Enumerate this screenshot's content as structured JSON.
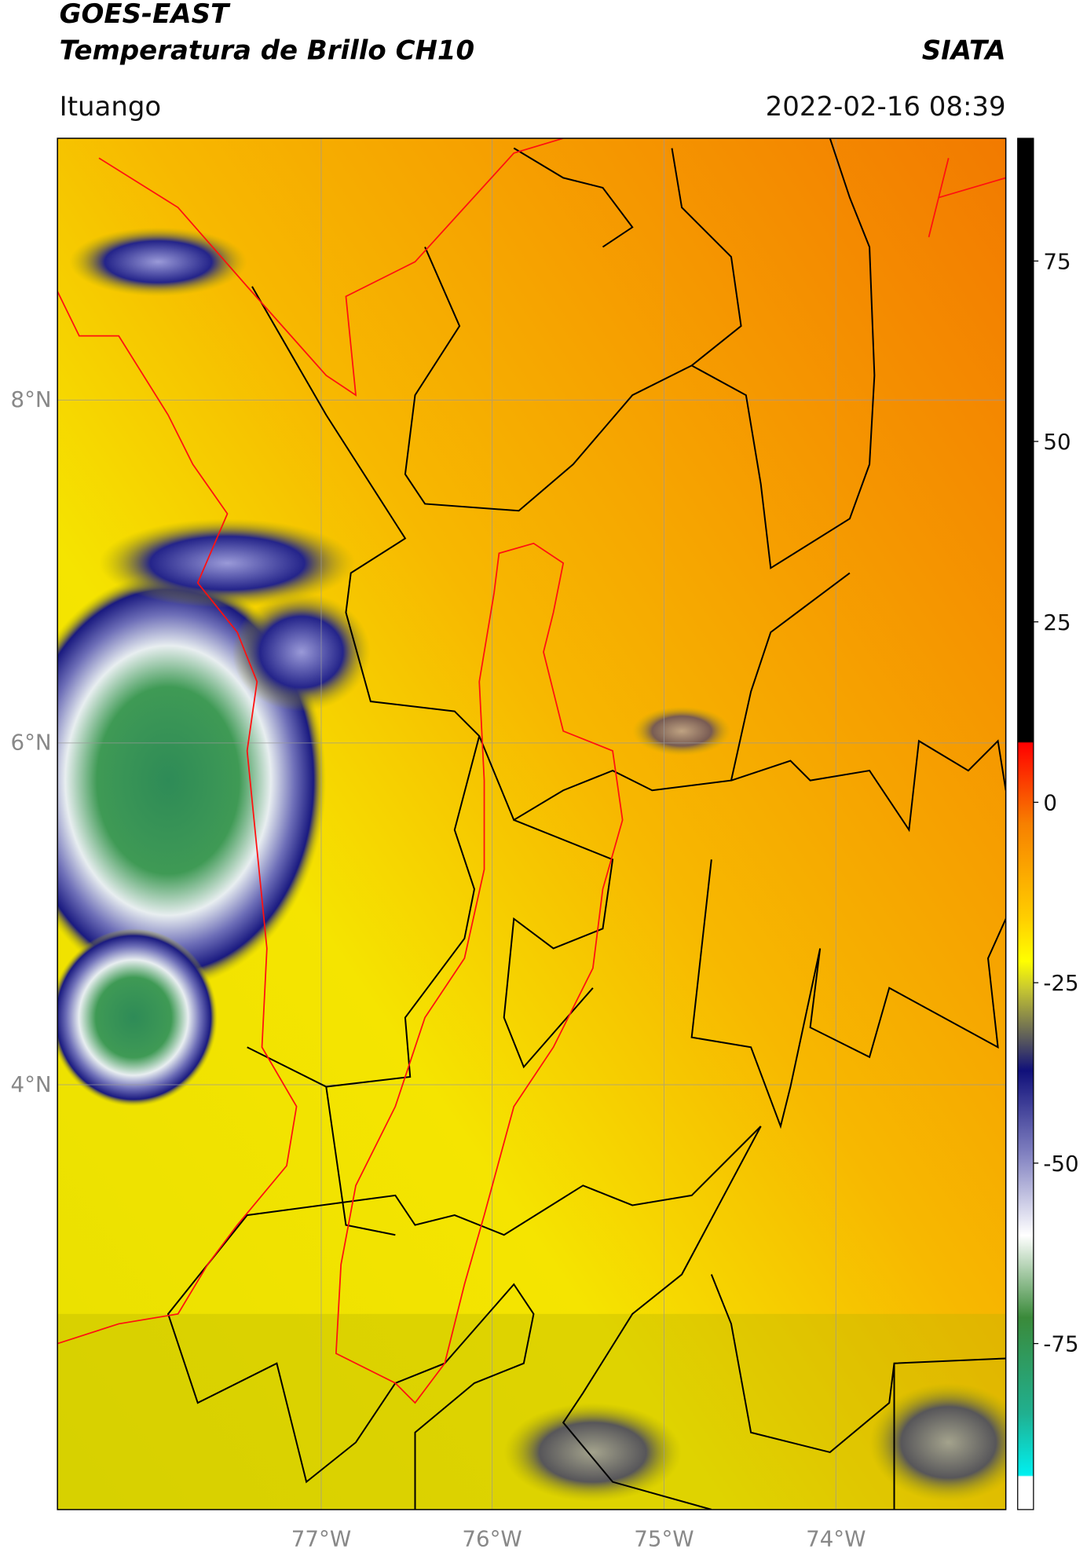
{
  "header": {
    "title": "GOES-EAST",
    "subtitle": "Temperatura de Brillo CH10",
    "source": "SIATA",
    "location": "Ituango",
    "datetime": "2022-02-16 08:39"
  },
  "map": {
    "lat_labels": [
      "8°N",
      "6°N",
      "4°N"
    ],
    "lon_labels": [
      "77°W",
      "76°W",
      "75°W",
      "74°W"
    ]
  },
  "colorbar": {
    "lim": [
      -98,
      92
    ],
    "ticks": [
      75,
      50,
      25,
      0,
      -25,
      -50,
      -75
    ]
  }
}
